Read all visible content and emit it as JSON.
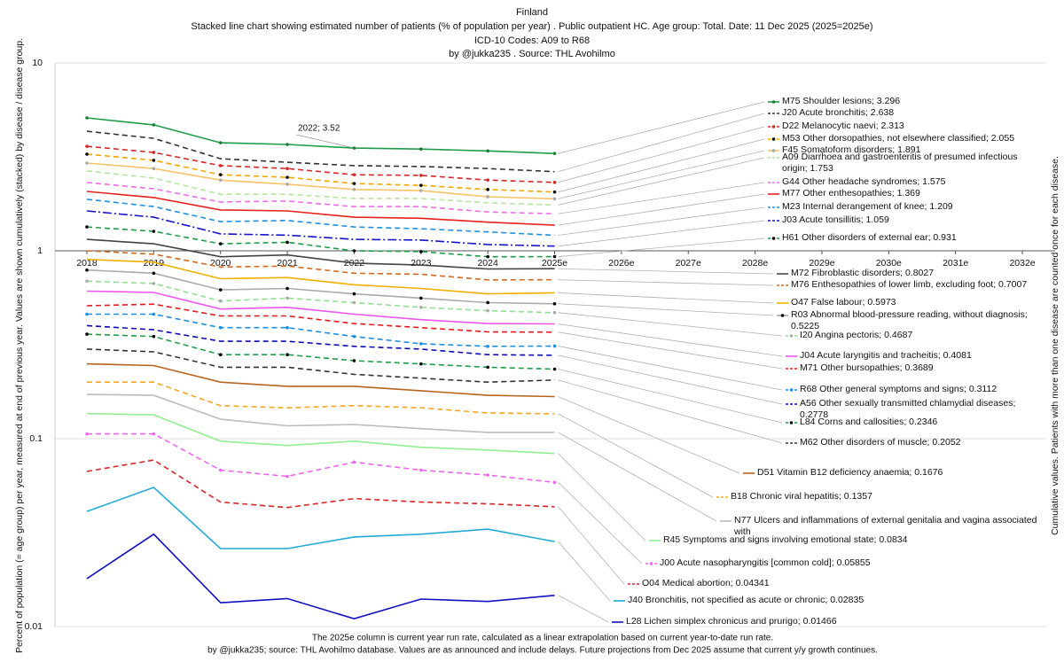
{
  "chart_data": {
    "type": "line",
    "title": "Finland",
    "subtitle": [
      "Stacked line chart showing estimated number of patients  (% of population per year) . Public outpatient HC. Age group: Total. Date: 11 Dec 2025 (2025=2025e)",
      "ICD-10 Codes: A09 to R68",
      "by @jukka235 . Source: THL Avohilmo"
    ],
    "y_label": "Percent of population (= age group) per year, measured at end of previous year. Values are shown cumulatively (stacked) by disease / disease group.",
    "y2_label": "Cumulative values. Patients with more than one disease are counted once for each disease.",
    "notes": [
      "The 2025e column is current year run rate, calculated as a linear extrapolation based on current year-to-date run rate.",
      "by @jukka235; source: THL Avohilmo database. Values are as announced and include delays. Future projections from Dec 2025 assume that current y/y growth continues."
    ],
    "annotations": [
      {
        "text": "2022; 3.52"
      }
    ],
    "log_scale": true,
    "grid": true,
    "ylim": [
      0.01,
      10
    ],
    "yticks": [
      0.01,
      0.1,
      1,
      10
    ],
    "categories": [
      "2018",
      "2019",
      "2020",
      "2021",
      "2022",
      "2023",
      "2024",
      "2025e",
      "2026e",
      "2027e",
      "2028e",
      "2029e",
      "2030e",
      "2031e",
      "2032e"
    ],
    "series": [
      {
        "name": "M75 Shoulder lesions; 3.296",
        "color": "#1e9c48",
        "style": "solid",
        "marker": "#1e7c38",
        "values": [
          5.1,
          4.68,
          3.76,
          3.68,
          3.52,
          3.48,
          3.4,
          3.296,
          null,
          null,
          null,
          null,
          null,
          null,
          null
        ]
      },
      {
        "name": "J20 Acute bronchitis; 2.638",
        "color": "#333333",
        "style": "dashed",
        "values": [
          4.33,
          3.97,
          3.09,
          2.96,
          2.84,
          2.81,
          2.74,
          2.638,
          null,
          null,
          null,
          null,
          null,
          null,
          null
        ]
      },
      {
        "name": "D22 Melanocytic naevi; 2.313",
        "color": "#d62728",
        "style": "dashed",
        "marker": "#d62728",
        "values": [
          3.6,
          3.34,
          2.84,
          2.74,
          2.54,
          2.52,
          2.38,
          2.313,
          null,
          null,
          null,
          null,
          null,
          null,
          null
        ]
      },
      {
        "name": "M53 Other dorsopathies, not elsewhere classified; 2.055",
        "color": "#f0a800",
        "style": "dashed",
        "marker": "#000000",
        "values": [
          3.27,
          3.03,
          2.54,
          2.46,
          2.28,
          2.23,
          2.12,
          2.055,
          null,
          null,
          null,
          null,
          null,
          null,
          null
        ]
      },
      {
        "name": "F45 Somatoform disorders; 1.891",
        "color": "#f6c26b",
        "style": "solid",
        "marker": "#aaaaaa",
        "values": [
          2.93,
          2.74,
          2.38,
          2.26,
          2.12,
          2.09,
          1.94,
          1.891,
          null,
          null,
          null,
          null,
          null,
          null,
          null
        ]
      },
      {
        "name": "A09 Diarrhoea and gastroenteritis of presumed infectious origin; 1.753",
        "color": "#b5e6a0",
        "style": "dashed",
        "values": [
          2.66,
          2.44,
          2.0,
          2.0,
          1.9,
          1.9,
          1.8,
          1.753,
          null,
          null,
          null,
          null,
          null,
          null,
          null
        ]
      },
      {
        "name": "G44 Other headache syndromes; 1.575",
        "color": "#ee6ee6",
        "style": "dashed",
        "values": [
          2.31,
          2.14,
          1.82,
          1.84,
          1.72,
          1.72,
          1.61,
          1.575,
          null,
          null,
          null,
          null,
          null,
          null,
          null
        ]
      },
      {
        "name": "M77 Other enthesopathies; 1.369",
        "color": "#e8201c",
        "style": "solid",
        "values": [
          2.07,
          1.92,
          1.65,
          1.63,
          1.51,
          1.49,
          1.42,
          1.369,
          null,
          null,
          null,
          null,
          null,
          null,
          null
        ]
      },
      {
        "name": "M23 Internal derangement of knee; 1.209",
        "color": "#1c8fe0",
        "style": "dashed",
        "values": [
          1.88,
          1.72,
          1.43,
          1.45,
          1.34,
          1.31,
          1.26,
          1.209,
          null,
          null,
          null,
          null,
          null,
          null,
          null
        ]
      },
      {
        "name": "J03 Acute tonsillitis; 1.059",
        "color": "#1515c8",
        "style": "dashdot",
        "values": [
          1.63,
          1.51,
          1.23,
          1.21,
          1.15,
          1.14,
          1.08,
          1.059,
          null,
          null,
          null,
          null,
          null,
          null,
          null
        ]
      },
      {
        "name": "H61 Other disorders of external ear; 0.931",
        "color": "#1e9c48",
        "style": "dashed",
        "marker": "#000000",
        "values": [
          1.34,
          1.27,
          1.09,
          1.11,
          1.0,
          0.99,
          0.93,
          0.931,
          null,
          null,
          null,
          null,
          null,
          null,
          null
        ]
      },
      {
        "name": "M72 Fibroblastic disorders; 0.8027",
        "color": "#444444",
        "style": "solid",
        "values": [
          1.15,
          1.09,
          0.93,
          0.95,
          0.86,
          0.84,
          0.8,
          0.8027,
          null,
          null,
          null,
          null,
          null,
          null,
          null
        ]
      },
      {
        "name": "M76 Enthesopathies of lower limb, excluding foot; 0.7007",
        "color": "#d2691e",
        "style": "dashed",
        "values": [
          1.0,
          0.96,
          0.82,
          0.83,
          0.76,
          0.75,
          0.7,
          0.7007,
          null,
          null,
          null,
          null,
          null,
          null,
          null
        ]
      },
      {
        "name": "O47 False labour; 0.5973",
        "color": "#f0b000",
        "style": "solid",
        "values": [
          0.9,
          0.87,
          0.71,
          0.72,
          0.66,
          0.63,
          0.59,
          0.5973,
          null,
          null,
          null,
          null,
          null,
          null,
          null
        ]
      },
      {
        "name": "R03 Abnormal blood-pressure reading, without diagnosis; 0.5225",
        "color": "#aaaaaa",
        "style": "solid",
        "marker": "#000000",
        "values": [
          0.79,
          0.76,
          0.62,
          0.63,
          0.59,
          0.56,
          0.53,
          0.5225,
          null,
          null,
          null,
          null,
          null,
          null,
          null
        ]
      },
      {
        "name": "I20 Angina pectoris; 0.4687",
        "color": "#90e090",
        "style": "dashed",
        "marker": "#aaaaaa",
        "values": [
          0.69,
          0.67,
          0.54,
          0.56,
          0.53,
          0.5,
          0.48,
          0.4687,
          null,
          null,
          null,
          null,
          null,
          null,
          null
        ]
      },
      {
        "name": "J04 Acute laryngitis and tracheitis; 0.4081",
        "color": "#ee55ee",
        "style": "solid",
        "values": [
          0.61,
          0.6,
          0.49,
          0.5,
          0.46,
          0.43,
          0.41,
          0.4081,
          null,
          null,
          null,
          null,
          null,
          null,
          null
        ]
      },
      {
        "name": "M71 Other bursopathies; 0.3689",
        "color": "#e31a1c",
        "style": "dashed",
        "values": [
          0.51,
          0.52,
          0.45,
          0.45,
          0.41,
          0.39,
          0.37,
          0.3689,
          null,
          null,
          null,
          null,
          null,
          null,
          null
        ]
      },
      {
        "name": "R68 Other general symptoms and signs; 0.3112",
        "color": "#1c8fe0",
        "style": "dashed",
        "marker": "#1c8fe0",
        "values": [
          0.46,
          0.46,
          0.39,
          0.39,
          0.35,
          0.32,
          0.31,
          0.3112,
          null,
          null,
          null,
          null,
          null,
          null,
          null
        ]
      },
      {
        "name": "A56 Other sexually transmitted chlamydial diseases; 0.2778",
        "color": "#0a0ab4",
        "style": "dashed",
        "values": [
          0.4,
          0.38,
          0.33,
          0.33,
          0.31,
          0.3,
          0.28,
          0.2778,
          null,
          null,
          null,
          null,
          null,
          null,
          null
        ]
      },
      {
        "name": "L84 Corns and callosities; 0.2346",
        "color": "#1e9c48",
        "style": "dashed",
        "marker": "#000000",
        "values": [
          0.36,
          0.35,
          0.28,
          0.28,
          0.26,
          0.25,
          0.24,
          0.2346,
          null,
          null,
          null,
          null,
          null,
          null,
          null
        ]
      },
      {
        "name": "M62 Other disorders of muscle; 0.2052",
        "color": "#333333",
        "style": "dashed",
        "values": [
          0.3,
          0.29,
          0.24,
          0.24,
          0.22,
          0.21,
          0.2,
          0.2052,
          null,
          null,
          null,
          null,
          null,
          null,
          null
        ]
      },
      {
        "name": "D51 Vitamin B12 deficiency anaemia; 0.1676",
        "color": "#b5651d",
        "style": "solid",
        "values": [
          0.25,
          0.245,
          0.2,
          0.19,
          0.19,
          0.18,
          0.17,
          0.1676,
          null,
          null,
          null,
          null,
          null,
          null,
          null
        ]
      },
      {
        "name": "B18 Chronic viral hepatitis; 0.1357",
        "color": "#f5a623",
        "style": "dashed",
        "values": [
          0.2,
          0.2,
          0.15,
          0.146,
          0.15,
          0.146,
          0.137,
          0.1357,
          null,
          null,
          null,
          null,
          null,
          null,
          null
        ]
      },
      {
        "name": "N77 Ulcers and inflammations of external genitalia and vagina associated with",
        "color": "#bbbbbb",
        "style": "solid",
        "values": [
          0.172,
          0.17,
          0.127,
          0.117,
          0.119,
          0.113,
          0.108,
          0.108,
          null,
          null,
          null,
          null,
          null,
          null,
          null
        ]
      },
      {
        "name": "R45 Symptoms and signs involving emotional state; 0.0834",
        "color": "#90ee90",
        "style": "solid",
        "values": [
          0.136,
          0.134,
          0.097,
          0.092,
          0.097,
          0.09,
          0.087,
          0.0834,
          null,
          null,
          null,
          null,
          null,
          null,
          null
        ]
      },
      {
        "name": "J00 Acute nasopharyngitis [common cold]; 0.05855",
        "color": "#ee66ee",
        "style": "dashed",
        "marker": "#ee66ee",
        "values": [
          0.106,
          0.106,
          0.068,
          0.063,
          0.075,
          0.068,
          0.064,
          0.05855,
          null,
          null,
          null,
          null,
          null,
          null,
          null
        ]
      },
      {
        "name": "O04 Medical abortion; 0.04341",
        "color": "#d62728",
        "style": "dashed",
        "values": [
          0.067,
          0.077,
          0.046,
          0.043,
          0.048,
          0.046,
          0.045,
          0.04341,
          null,
          null,
          null,
          null,
          null,
          null,
          null
        ]
      },
      {
        "name": "J40 Bronchitis, not specified as acute or chronic; 0.02835",
        "color": "#22aad6",
        "style": "solid",
        "values": [
          0.041,
          0.055,
          0.026,
          0.026,
          0.03,
          0.031,
          0.033,
          0.02835,
          null,
          null,
          null,
          null,
          null,
          null,
          null
        ]
      },
      {
        "name": "L28 Lichen simplex chronicus and prurigo; 0.01466",
        "color": "#1010c0",
        "style": "solid",
        "values": [
          0.018,
          0.031,
          0.0134,
          0.0141,
          0.011,
          0.014,
          0.0136,
          0.01466,
          null,
          null,
          null,
          null,
          null,
          null,
          null
        ]
      }
    ]
  }
}
